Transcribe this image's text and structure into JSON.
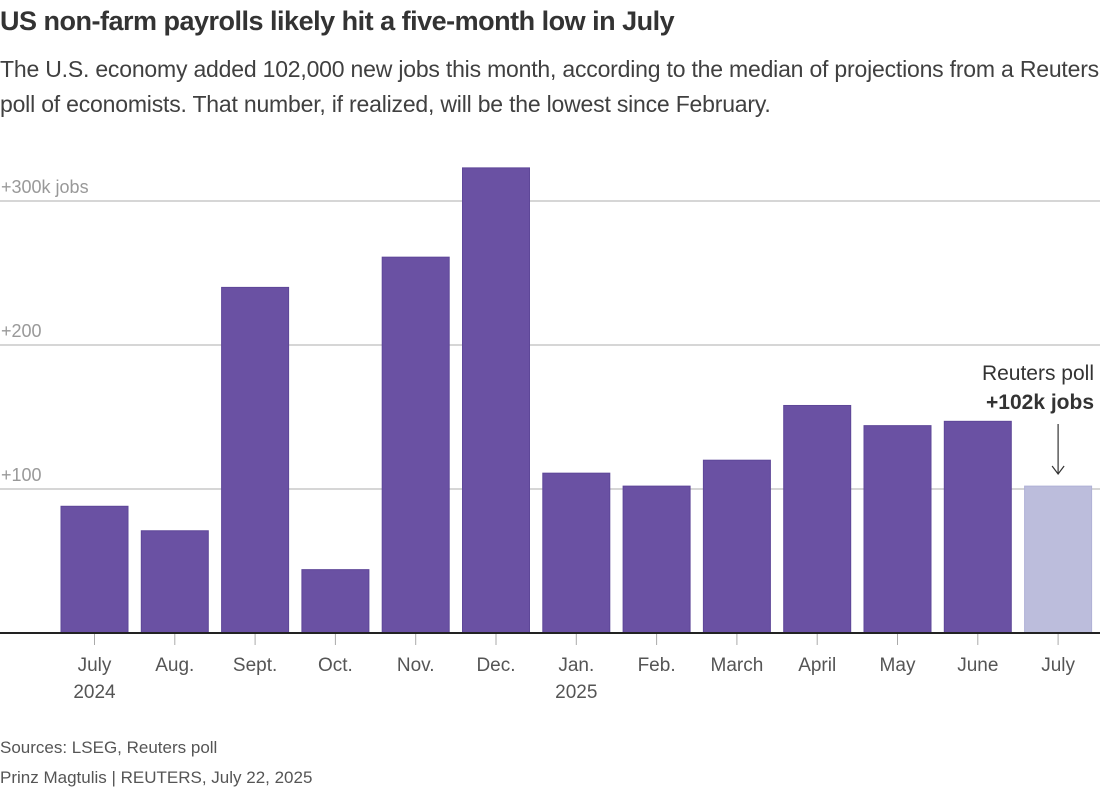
{
  "header": {
    "title": "US non-farm payrolls likely hit a five-month low in July",
    "subtitle": "The U.S. economy added 102,000 new jobs this month, according to the median of projections from a Reuters poll of economists. That number, if realized, will be the lowest since February."
  },
  "footer": {
    "sources": "Sources: LSEG, Reuters poll",
    "credit": "Prinz Magtulis | REUTERS, July 22, 2025"
  },
  "chart_data": {
    "type": "bar",
    "title": "US non-farm payrolls likely hit a five-month low in July",
    "xlabel": "",
    "ylabel": "Jobs (thousands)",
    "ylim": [
      0,
      320
    ],
    "yticks": [
      100,
      200,
      300
    ],
    "ytick_labels": [
      "+100",
      "+200",
      "+300k jobs"
    ],
    "grid": true,
    "categories": [
      "July 2024",
      "Aug.",
      "Sept.",
      "Oct.",
      "Nov.",
      "Dec.",
      "Jan. 2025",
      "Feb.",
      "March",
      "April",
      "May",
      "June",
      "July"
    ],
    "category_labels": [
      [
        "July",
        "2024"
      ],
      [
        "Aug."
      ],
      [
        "Sept."
      ],
      [
        "Oct."
      ],
      [
        "Nov."
      ],
      [
        "Dec."
      ],
      [
        "Jan.",
        "2025"
      ],
      [
        "Feb."
      ],
      [
        "March"
      ],
      [
        "April"
      ],
      [
        "May"
      ],
      [
        "June"
      ],
      [
        "July"
      ]
    ],
    "values": [
      88,
      71,
      240,
      44,
      261,
      323,
      111,
      102,
      120,
      158,
      144,
      147,
      102
    ],
    "projected": [
      false,
      false,
      false,
      false,
      false,
      false,
      false,
      false,
      false,
      false,
      false,
      false,
      true
    ],
    "colors": {
      "actual": "#6a51a3",
      "projected": "#bcbddc",
      "grid": "#c8c8c8",
      "axis": "#222222",
      "tick_label": "#999999",
      "category_label": "#555555"
    },
    "annotation": {
      "line1": "Reuters poll",
      "line2": "+102k jobs",
      "target_index": 12
    }
  }
}
